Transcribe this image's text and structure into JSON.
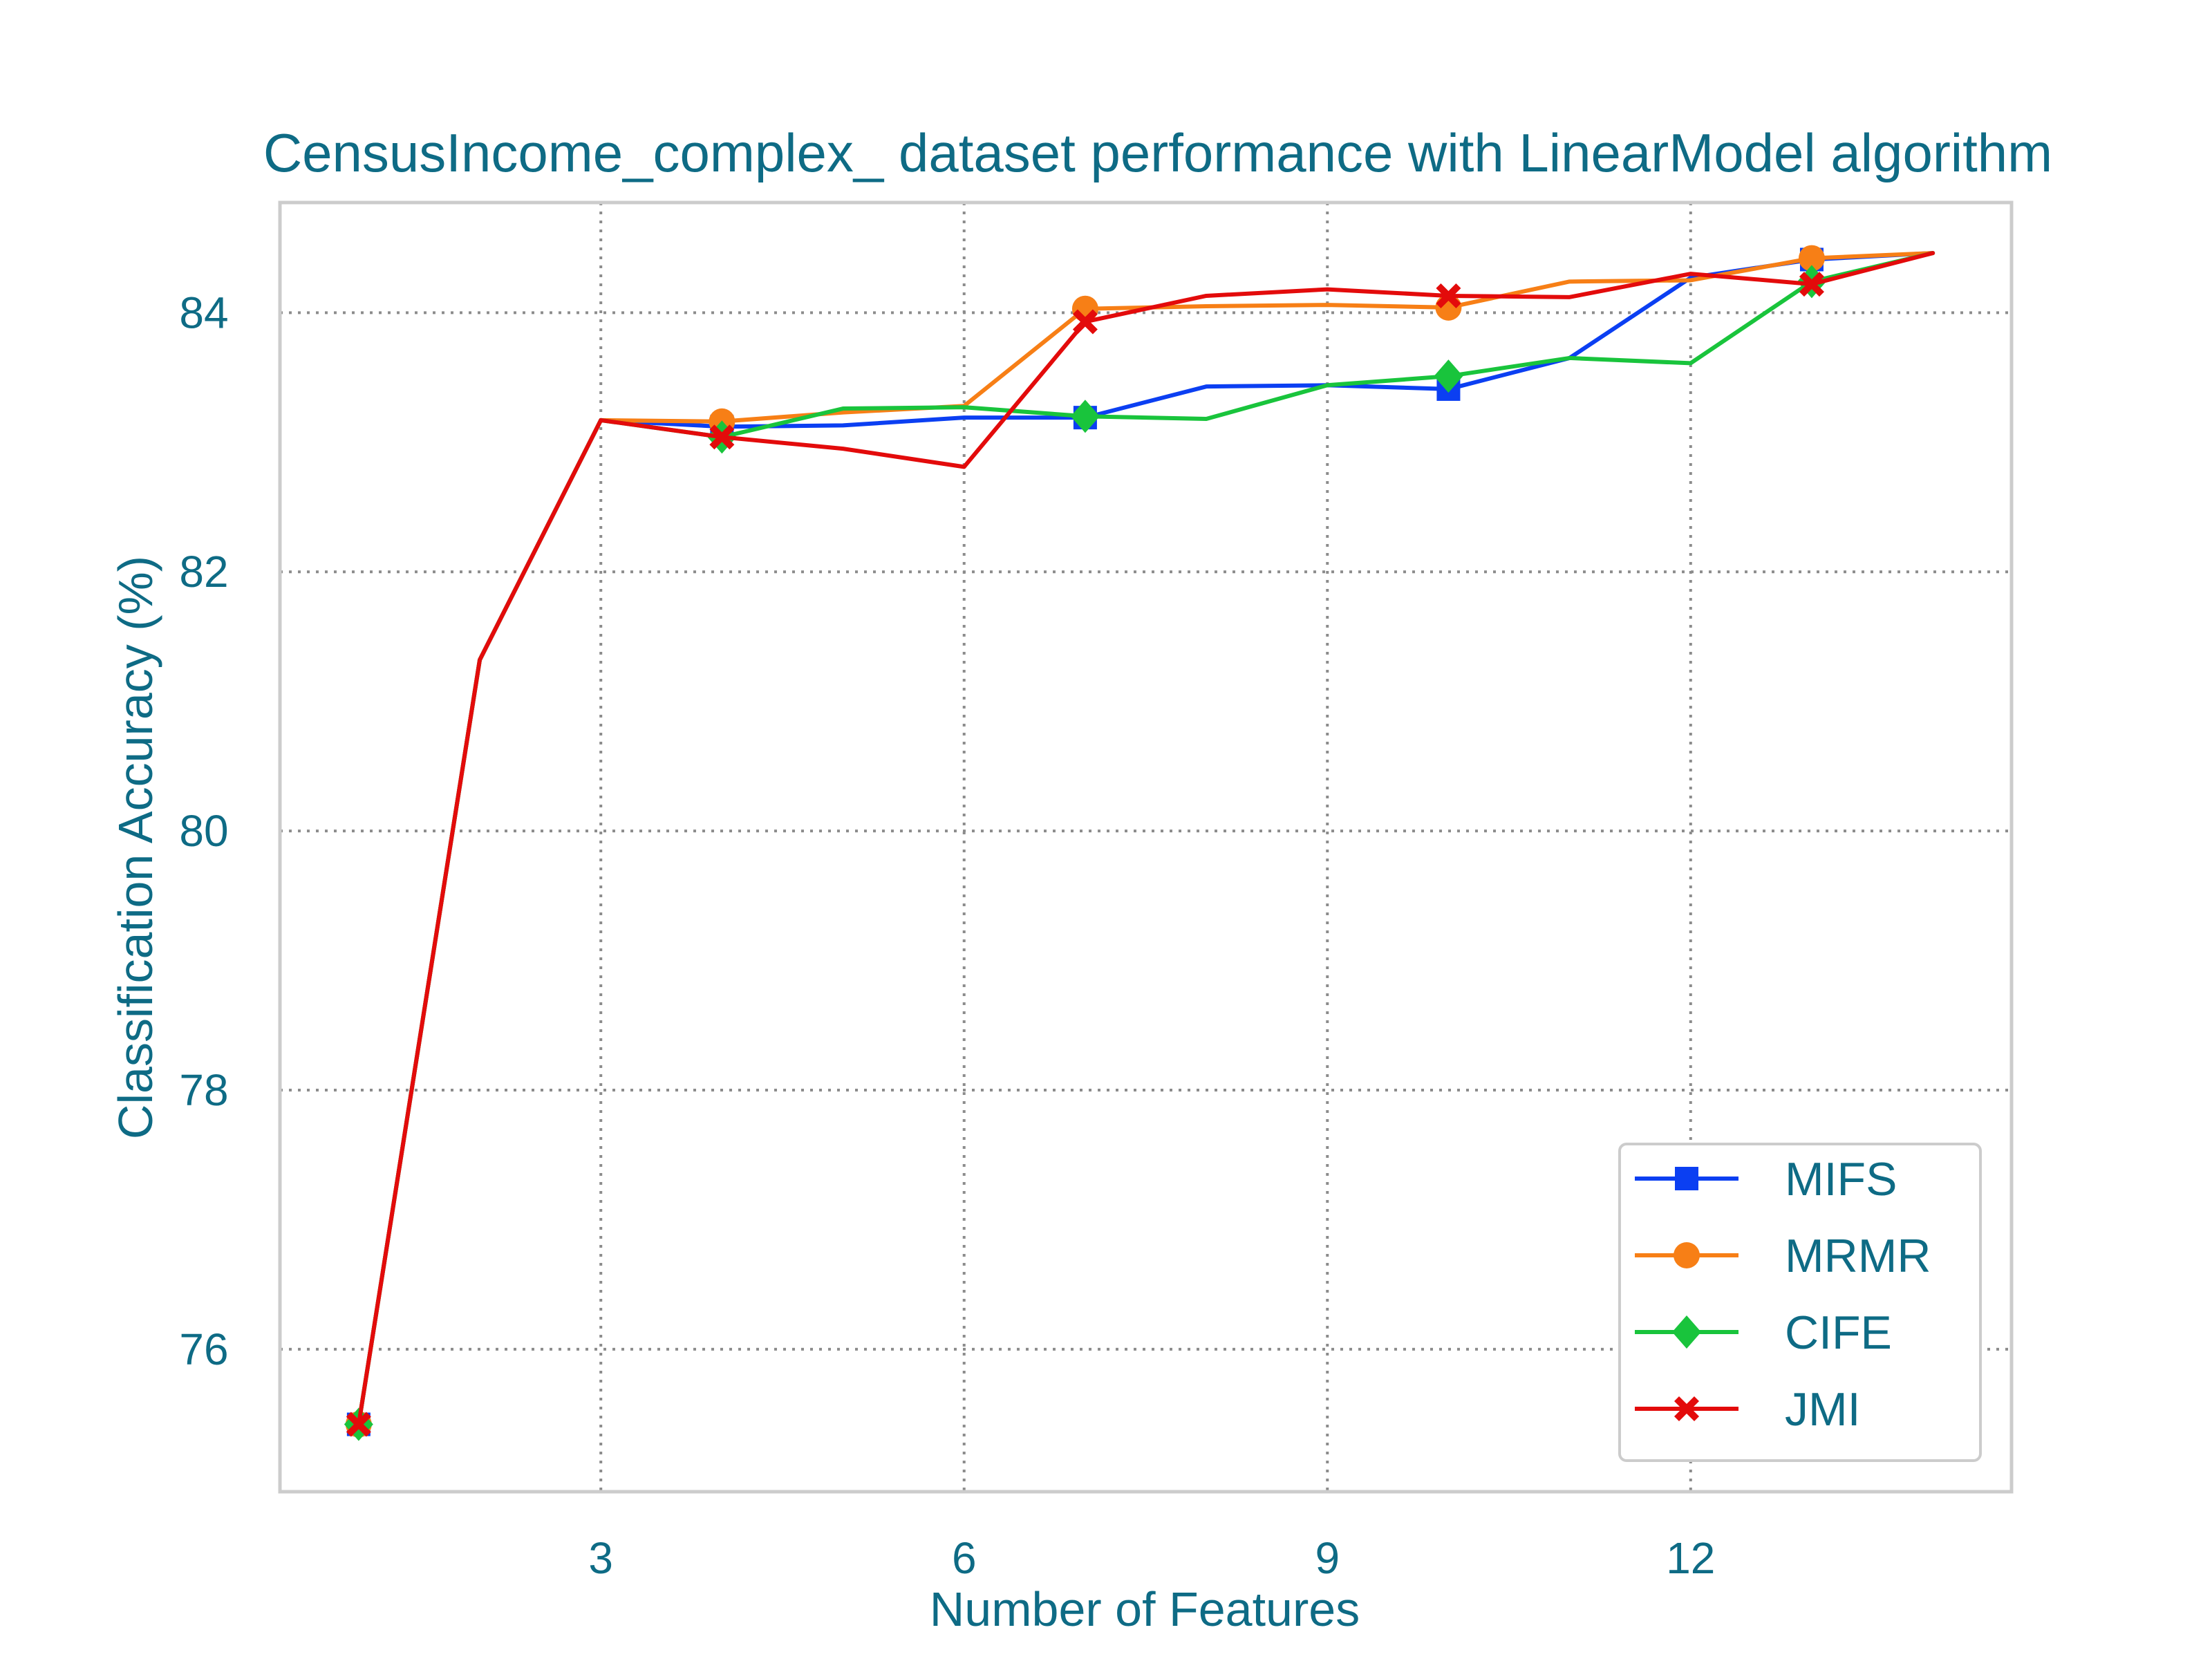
{
  "chart_data": {
    "type": "line",
    "title": "CensusIncome_complex_ dataset performance with LinearModel algorithm",
    "xlabel": "Number of Features",
    "ylabel": "Classification Accuracy (%)",
    "xlim": [
      0.35,
      14.65
    ],
    "ylim": [
      74.9,
      84.85
    ],
    "xticks": [
      3,
      6,
      9,
      12
    ],
    "yticks": [
      76,
      78,
      80,
      82,
      84
    ],
    "grid": true,
    "legend_position": "lower-right",
    "x": [
      1,
      2,
      3,
      4,
      5,
      6,
      7,
      8,
      9,
      10,
      11,
      12,
      13,
      14
    ],
    "series": [
      {
        "name": "MIFS",
        "color": "#0b3ff2",
        "marker": "square",
        "values": [
          75.42,
          81.32,
          83.17,
          83.12,
          83.13,
          83.19,
          83.19,
          83.43,
          83.44,
          83.41,
          83.65,
          84.27,
          84.41,
          84.46
        ]
      },
      {
        "name": "MRMR",
        "color": "#f77f16",
        "marker": "circle",
        "values": [
          75.42,
          81.32,
          83.17,
          83.16,
          83.23,
          83.28,
          84.03,
          84.05,
          84.06,
          84.04,
          84.24,
          84.25,
          84.42,
          84.46
        ]
      },
      {
        "name": "CIFE",
        "color": "#19c43c",
        "marker": "diamond",
        "values": [
          75.42,
          81.32,
          83.17,
          83.04,
          83.26,
          83.27,
          83.2,
          83.18,
          83.44,
          83.51,
          83.65,
          83.61,
          84.24,
          84.46
        ]
      },
      {
        "name": "JMI",
        "color": "#e30b0b",
        "marker": "x",
        "values": [
          75.42,
          81.32,
          83.17,
          83.04,
          82.95,
          82.81,
          83.93,
          84.13,
          84.18,
          84.13,
          84.12,
          84.3,
          84.22,
          84.46
        ]
      }
    ]
  },
  "colors": {
    "text": "#0e6b85",
    "grid": "#8c8c8c",
    "frame": "#cccccc"
  }
}
